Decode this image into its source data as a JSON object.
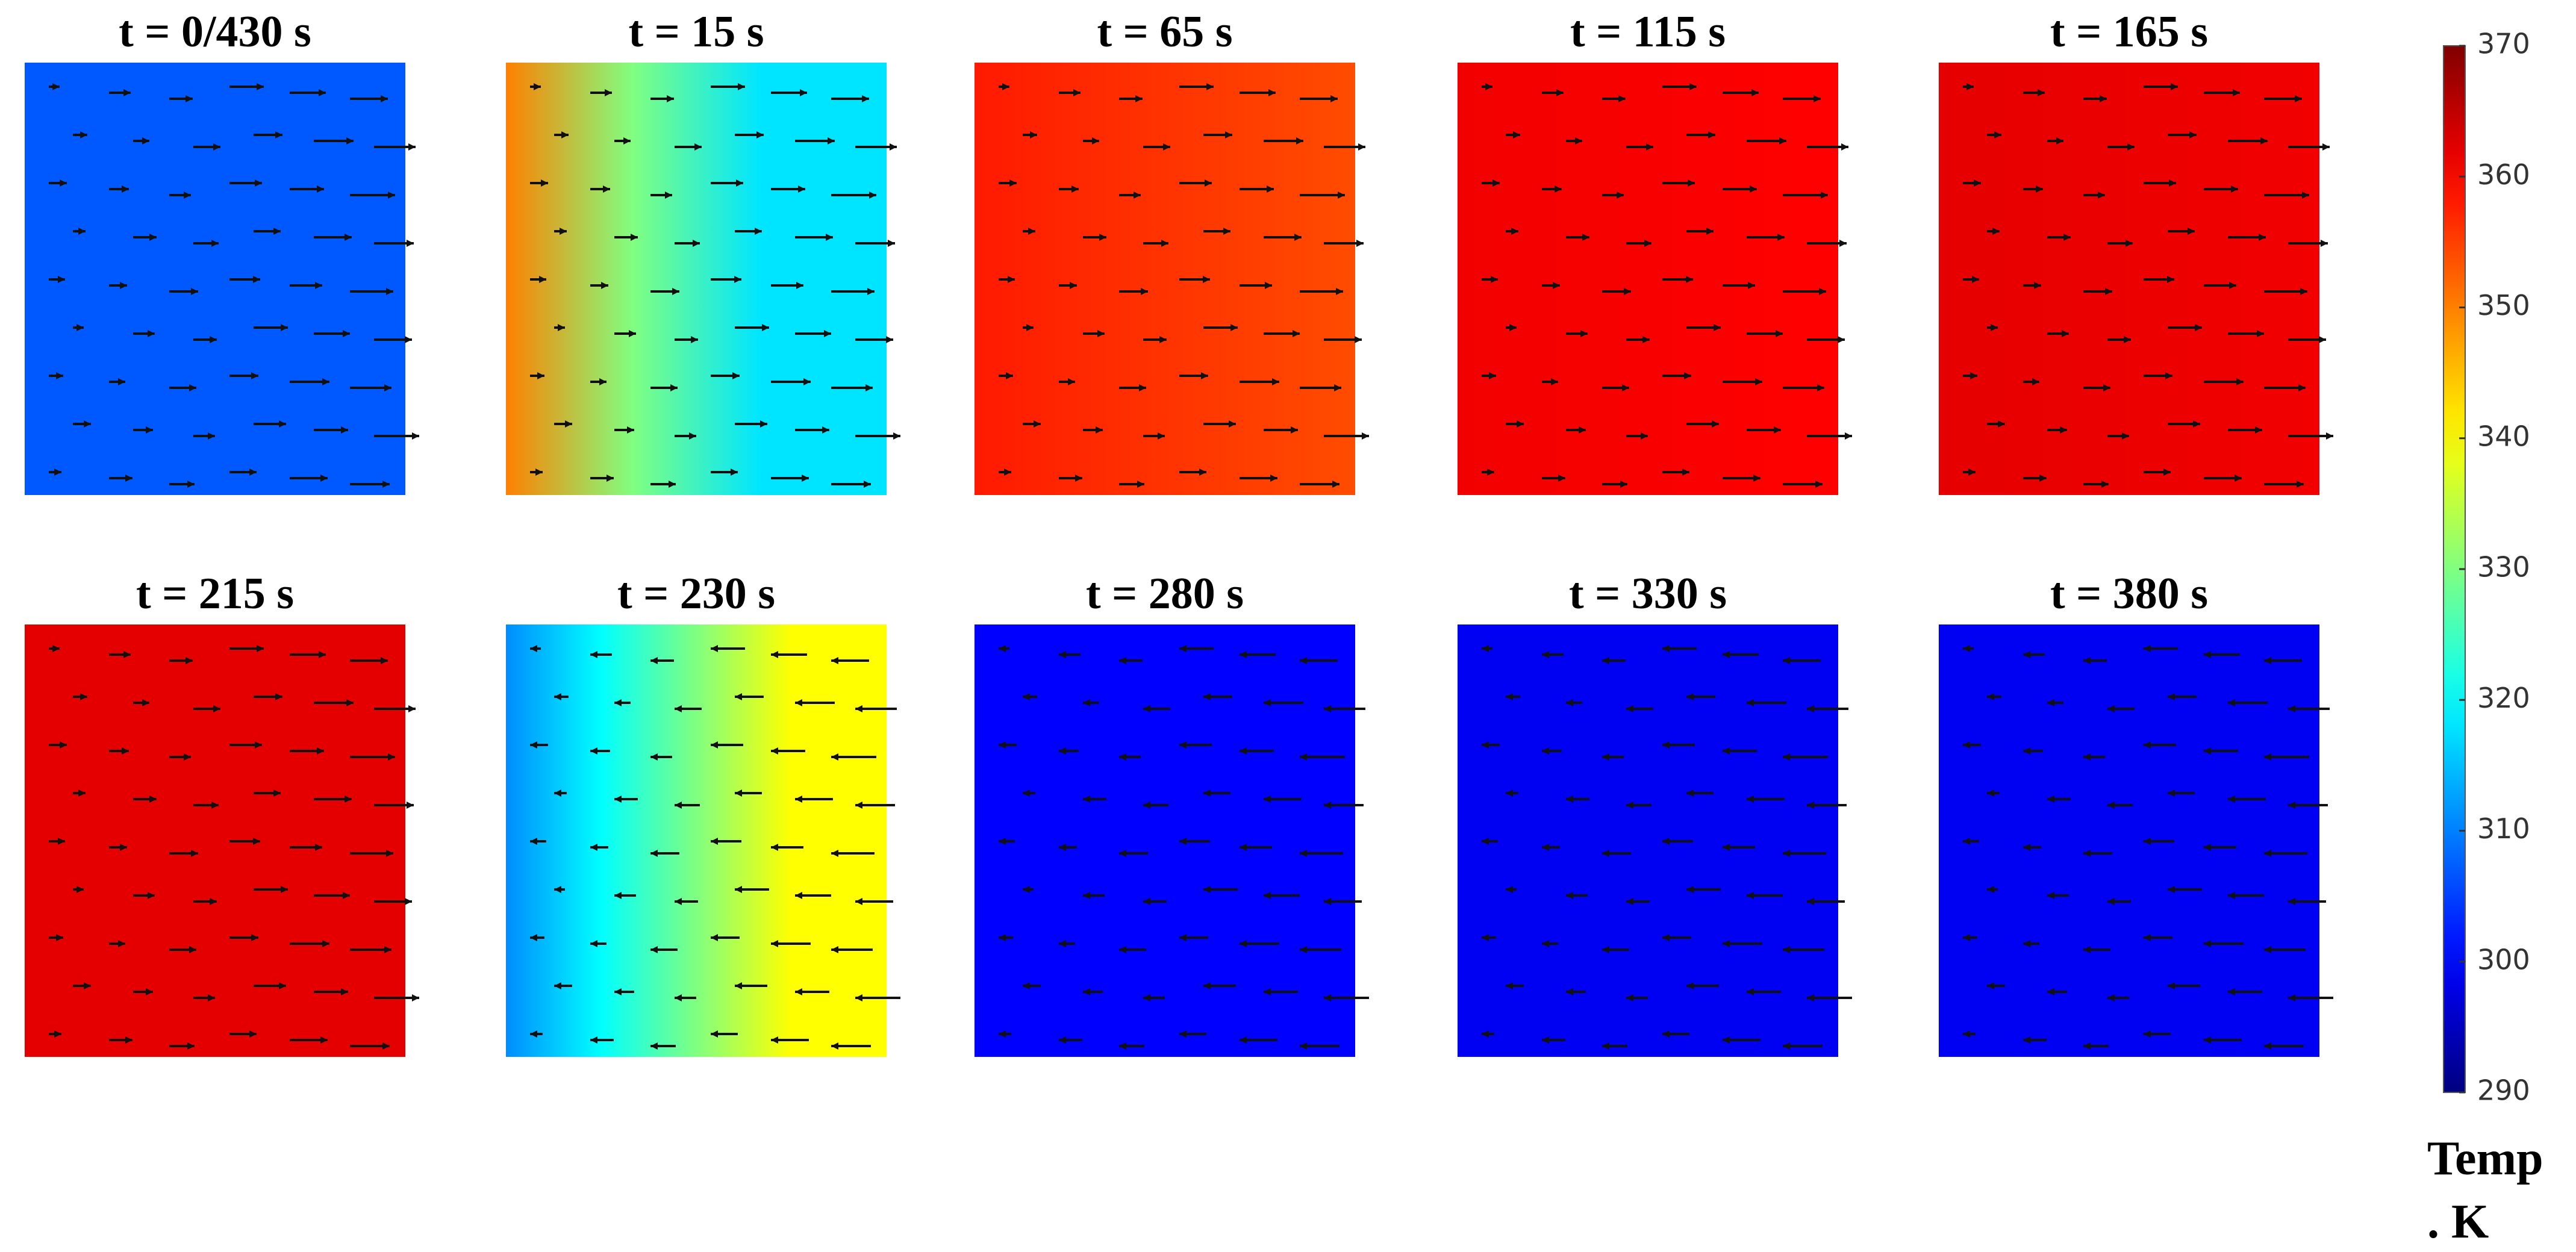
{
  "chart_data": {
    "type": "field-panels",
    "panels": [
      {
        "title": "t = 0/430 s",
        "values": [
          307,
          307
        ],
        "arrow_direction": "right"
      },
      {
        "title": "t = 15 s",
        "values": [
          350,
          330,
          318,
          318
        ],
        "arrow_direction": "right"
      },
      {
        "title": "t = 65 s",
        "values": [
          358,
          354
        ],
        "arrow_direction": "right"
      },
      {
        "title": "t = 115 s",
        "values": [
          361,
          360
        ],
        "arrow_direction": "right"
      },
      {
        "title": "t = 165 s",
        "values": [
          362,
          361
        ],
        "arrow_direction": "right"
      },
      {
        "title": "t = 215 s",
        "values": [
          362,
          362
        ],
        "arrow_direction": "right"
      },
      {
        "title": "t = 230 s",
        "values": [
          311,
          320,
          330,
          340,
          340
        ],
        "arrow_direction": "left"
      },
      {
        "title": "t = 280 s",
        "values": [
          300,
          300
        ],
        "arrow_direction": "left"
      },
      {
        "title": "t = 330 s",
        "values": [
          299,
          299
        ],
        "arrow_direction": "left"
      },
      {
        "title": "t = 380 s",
        "values": [
          299,
          299
        ],
        "arrow_direction": "left"
      }
    ],
    "colorbar": {
      "ylim": [
        290,
        370
      ],
      "yticks": [
        290,
        300,
        310,
        320,
        330,
        340,
        350,
        360,
        370
      ],
      "colormap": "jet",
      "label": [
        "Temp",
        ". K"
      ]
    }
  }
}
